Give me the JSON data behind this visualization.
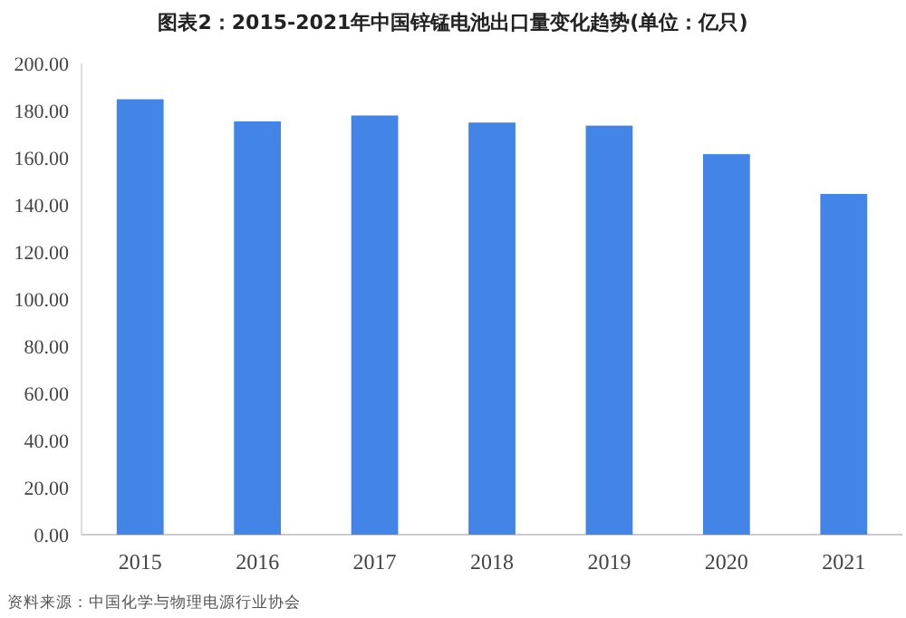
{
  "chart_data": {
    "type": "bar",
    "title": "图表2：2015-2021年中国锌锰电池出口量变化趋势(单位：亿只)",
    "categories": [
      "2015",
      "2016",
      "2017",
      "2018",
      "2019",
      "2020",
      "2021"
    ],
    "values": [
      184.8,
      175.4,
      177.9,
      174.9,
      173.6,
      161.5,
      144.6
    ],
    "color": "#4285e6",
    "ylim": [
      0,
      200
    ],
    "yticks": [
      {
        "value": 0,
        "label": "0.00"
      },
      {
        "value": 20,
        "label": "20.00"
      },
      {
        "value": 40,
        "label": "40.00"
      },
      {
        "value": 60,
        "label": "60.00"
      },
      {
        "value": 80,
        "label": "80.00"
      },
      {
        "value": 100,
        "label": "100.00"
      },
      {
        "value": 120,
        "label": "120.00"
      },
      {
        "value": 140,
        "label": "140.00"
      },
      {
        "value": 160,
        "label": "160.00"
      },
      {
        "value": 180,
        "label": "180.00"
      },
      {
        "value": 200,
        "label": "200.00"
      }
    ],
    "annotations": [
      "资料来源：中国化学与物理电源行业协会"
    ]
  }
}
